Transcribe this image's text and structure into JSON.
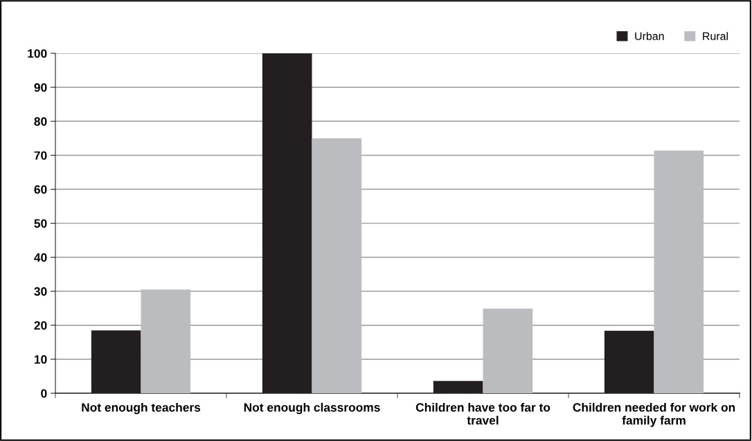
{
  "chart_data": {
    "type": "bar",
    "categories": [
      "Not enough teachers",
      "Not enough classrooms",
      "Children have too far to\ntravel",
      "Children needed for work on\nfamily farm"
    ],
    "series": [
      {
        "name": "Urban",
        "color": "#231f20",
        "values": [
          18.5,
          100,
          3.6,
          18.4
        ]
      },
      {
        "name": "Rural",
        "color": "#bbbcc0",
        "values": [
          30.5,
          75,
          24.9,
          71.4
        ]
      }
    ],
    "ylim": [
      0,
      100
    ],
    "yticks": [
      0,
      10,
      20,
      30,
      40,
      50,
      60,
      70,
      80,
      90,
      100
    ],
    "grid": "y",
    "legend": "top right"
  }
}
